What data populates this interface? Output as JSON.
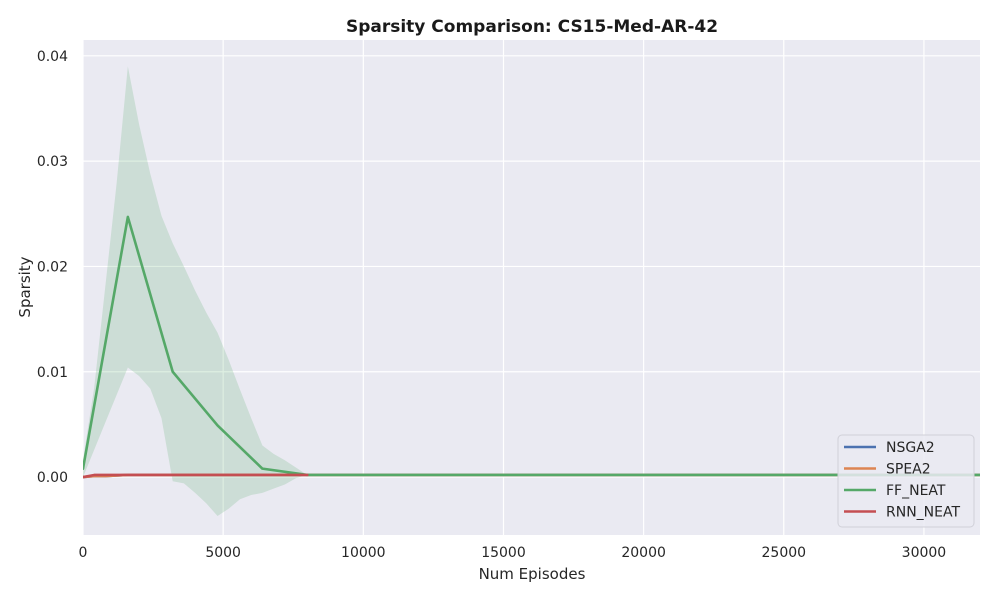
{
  "chart_data": {
    "type": "line",
    "title": "Sparsity Comparison: CS15-Med-AR-42",
    "xlabel": "Num Episodes",
    "ylabel": "Sparsity",
    "xlim": [
      0,
      32000
    ],
    "ylim": [
      -0.0055,
      0.0415
    ],
    "xticks": [
      0,
      5000,
      10000,
      15000,
      20000,
      25000,
      30000
    ],
    "xtick_labels": [
      "0",
      "5000",
      "10000",
      "15000",
      "20000",
      "25000",
      "30000"
    ],
    "yticks": [
      0.0,
      0.01,
      0.02,
      0.03,
      0.04
    ],
    "ytick_labels": [
      "0.00",
      "0.01",
      "0.02",
      "0.03",
      "0.04"
    ],
    "grid": true,
    "legend_position": "lower-right",
    "background_color": "#eaeaf2",
    "grid_color": "#ffffff",
    "series": [
      {
        "name": "NSGA2",
        "color": "#4c72b0",
        "x": [
          0,
          400,
          800,
          1600,
          3200,
          4800,
          6400,
          8000,
          12000,
          16000,
          20000,
          24000,
          28000,
          32000
        ],
        "y": [
          0.0,
          0.0001,
          0.0001,
          0.0002,
          0.0002,
          0.0002,
          0.0002,
          0.0002,
          0.0002,
          0.0002,
          0.0002,
          0.0002,
          0.0002,
          0.0002
        ]
      },
      {
        "name": "SPEA2",
        "color": "#dd8452",
        "x": [
          0,
          400,
          800,
          1600,
          3200,
          4800,
          6400,
          8000,
          12000,
          16000,
          20000,
          24000,
          28000,
          32000
        ],
        "y": [
          0.0,
          0.0001,
          0.0001,
          0.0002,
          0.0002,
          0.0002,
          0.0002,
          0.0002,
          0.0002,
          0.0002,
          0.0002,
          0.0002,
          0.0002,
          0.0002
        ]
      },
      {
        "name": "FF_NEAT",
        "color": "#55a868",
        "x": [
          0,
          1600,
          3200,
          4800,
          6400,
          8000,
          12000,
          16000,
          20000,
          24000,
          28000,
          32000
        ],
        "y": [
          0.0008,
          0.0247,
          0.01,
          0.0049,
          0.0008,
          0.0002,
          0.0002,
          0.0002,
          0.0002,
          0.0002,
          0.0002,
          0.0002
        ],
        "band": {
          "x": [
            0,
            400,
            800,
            1200,
            1600,
            2000,
            2400,
            2800,
            3200,
            3600,
            4000,
            4400,
            4800,
            5200,
            5600,
            6000,
            6400,
            6800,
            7200,
            7600,
            8000
          ],
          "lower": [
            0.0,
            0.0026,
            0.0052,
            0.0078,
            0.0104,
            0.0096,
            0.0084,
            0.0056,
            -0.0004,
            -0.0006,
            -0.0015,
            -0.0025,
            -0.0037,
            -0.003,
            -0.0021,
            -0.0017,
            -0.0015,
            -0.0011,
            -0.0007,
            -0.0001,
            0.0002
          ],
          "upper": [
            0.0016,
            0.0085,
            0.0182,
            0.0279,
            0.039,
            0.0335,
            0.0288,
            0.0248,
            0.0222,
            0.02,
            0.0177,
            0.0156,
            0.0137,
            0.0111,
            0.0083,
            0.0056,
            0.003,
            0.0022,
            0.0016,
            0.0009,
            0.0002
          ]
        }
      },
      {
        "name": "RNN_NEAT",
        "color": "#c44e52",
        "x": [
          0,
          400,
          800,
          1600,
          3200,
          4800,
          6400,
          8000
        ],
        "y": [
          0.0,
          0.0002,
          0.0002,
          0.0002,
          0.0002,
          0.0002,
          0.0002,
          0.0002
        ]
      }
    ]
  }
}
